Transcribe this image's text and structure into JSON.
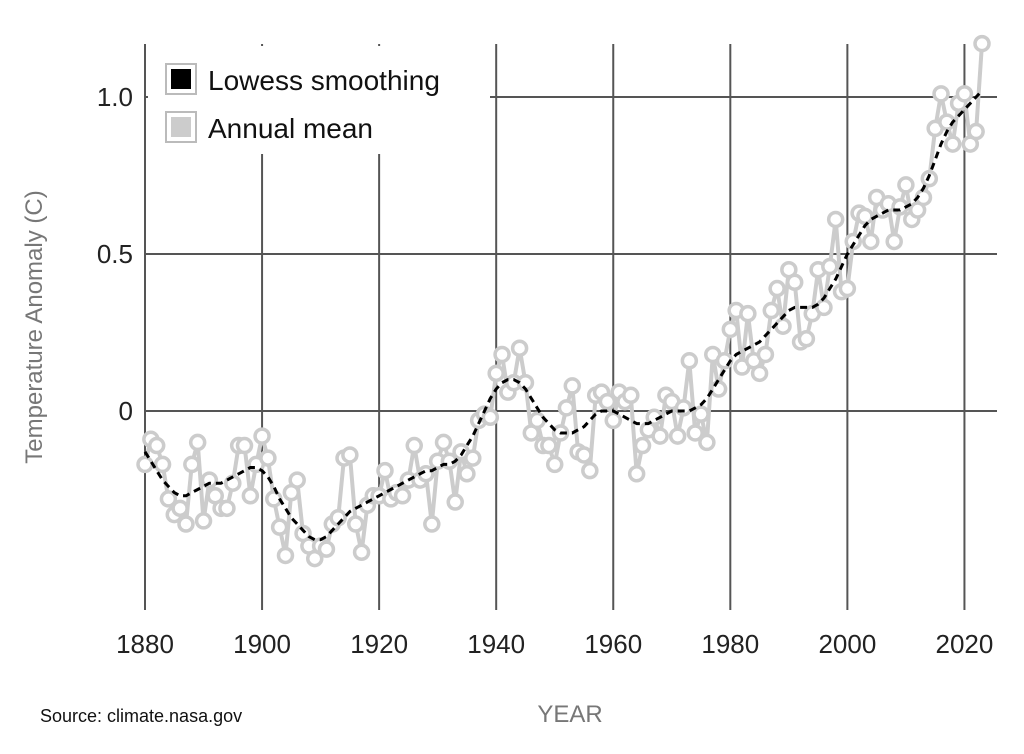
{
  "source": "Source: climate.nasa.gov",
  "chart_data": {
    "type": "line",
    "xlabel": "YEAR",
    "ylabel": "Temperature Anomaly (C)",
    "xlim": [
      1880,
      2023
    ],
    "ylim": [
      -0.6,
      1.2
    ],
    "x_ticks": [
      1880,
      1900,
      1920,
      1940,
      1960,
      1980,
      2000,
      2020
    ],
    "x_tick_labels": [
      "1880",
      "1900",
      "1920",
      "1940",
      "1960",
      "1980",
      "2000",
      "2020"
    ],
    "y_ticks": [
      0,
      0.5,
      1.0
    ],
    "y_tick_labels": [
      "0",
      "0.5",
      "1.0"
    ],
    "grid": true,
    "legend": {
      "placement": "top-left",
      "entries": [
        "Lowess smoothing",
        "Annual mean"
      ]
    },
    "colors": {
      "lowess": "#000000",
      "annual": "#cccccc",
      "grid": "#555555"
    },
    "series": [
      {
        "name": "Annual mean",
        "x": [
          1880,
          1881,
          1882,
          1883,
          1884,
          1885,
          1886,
          1887,
          1888,
          1889,
          1890,
          1891,
          1892,
          1893,
          1894,
          1895,
          1896,
          1897,
          1898,
          1899,
          1900,
          1901,
          1902,
          1903,
          1904,
          1905,
          1906,
          1907,
          1908,
          1909,
          1910,
          1911,
          1912,
          1913,
          1914,
          1915,
          1916,
          1917,
          1918,
          1919,
          1920,
          1921,
          1922,
          1923,
          1924,
          1925,
          1926,
          1927,
          1928,
          1929,
          1930,
          1931,
          1932,
          1933,
          1934,
          1935,
          1936,
          1937,
          1938,
          1939,
          1940,
          1941,
          1942,
          1943,
          1944,
          1945,
          1946,
          1947,
          1948,
          1949,
          1950,
          1951,
          1952,
          1953,
          1954,
          1955,
          1956,
          1957,
          1958,
          1959,
          1960,
          1961,
          1962,
          1963,
          1964,
          1965,
          1966,
          1967,
          1968,
          1969,
          1970,
          1971,
          1972,
          1973,
          1974,
          1975,
          1976,
          1977,
          1978,
          1979,
          1980,
          1981,
          1982,
          1983,
          1984,
          1985,
          1986,
          1987,
          1988,
          1989,
          1990,
          1991,
          1992,
          1993,
          1994,
          1995,
          1996,
          1997,
          1998,
          1999,
          2000,
          2001,
          2002,
          2003,
          2004,
          2005,
          2006,
          2007,
          2008,
          2009,
          2010,
          2011,
          2012,
          2013,
          2014,
          2015,
          2016,
          2017,
          2018,
          2019,
          2020,
          2021,
          2022,
          2023
        ],
        "values": [
          -0.17,
          -0.09,
          -0.11,
          -0.17,
          -0.28,
          -0.33,
          -0.31,
          -0.36,
          -0.17,
          -0.1,
          -0.35,
          -0.22,
          -0.27,
          -0.31,
          -0.31,
          -0.23,
          -0.11,
          -0.11,
          -0.27,
          -0.17,
          -0.08,
          -0.15,
          -0.28,
          -0.37,
          -0.46,
          -0.26,
          -0.22,
          -0.39,
          -0.43,
          -0.47,
          -0.43,
          -0.44,
          -0.36,
          -0.34,
          -0.15,
          -0.14,
          -0.36,
          -0.45,
          -0.3,
          -0.27,
          -0.27,
          -0.19,
          -0.28,
          -0.26,
          -0.27,
          -0.22,
          -0.11,
          -0.22,
          -0.2,
          -0.36,
          -0.16,
          -0.1,
          -0.16,
          -0.29,
          -0.13,
          -0.2,
          -0.15,
          -0.03,
          -0.01,
          -0.02,
          0.12,
          0.18,
          0.06,
          0.09,
          0.2,
          0.09,
          -0.07,
          -0.03,
          -0.11,
          -0.11,
          -0.17,
          -0.07,
          0.01,
          0.08,
          -0.13,
          -0.14,
          -0.19,
          0.05,
          0.06,
          0.03,
          -0.03,
          0.06,
          0.03,
          0.05,
          -0.2,
          -0.11,
          -0.06,
          -0.02,
          -0.08,
          0.05,
          0.03,
          -0.08,
          0.01,
          0.16,
          -0.07,
          -0.01,
          -0.1,
          0.18,
          0.07,
          0.16,
          0.26,
          0.32,
          0.14,
          0.31,
          0.16,
          0.12,
          0.18,
          0.32,
          0.39,
          0.27,
          0.45,
          0.41,
          0.22,
          0.23,
          0.31,
          0.45,
          0.33,
          0.46,
          0.61,
          0.38,
          0.39,
          0.54,
          0.63,
          0.62,
          0.54,
          0.68,
          0.64,
          0.66,
          0.54,
          0.65,
          0.72,
          0.61,
          0.64,
          0.68,
          0.74,
          0.9,
          1.01,
          0.92,
          0.85,
          0.98,
          1.01,
          0.85,
          0.89,
          1.17
        ]
      },
      {
        "name": "Lowess smoothing",
        "x": [
          1880,
          1881,
          1882,
          1883,
          1884,
          1885,
          1886,
          1887,
          1888,
          1889,
          1890,
          1891,
          1892,
          1893,
          1894,
          1895,
          1896,
          1897,
          1898,
          1899,
          1900,
          1901,
          1902,
          1903,
          1904,
          1905,
          1906,
          1907,
          1908,
          1909,
          1910,
          1911,
          1912,
          1913,
          1914,
          1915,
          1916,
          1917,
          1918,
          1919,
          1920,
          1921,
          1922,
          1923,
          1924,
          1925,
          1926,
          1927,
          1928,
          1929,
          1930,
          1931,
          1932,
          1933,
          1934,
          1935,
          1936,
          1937,
          1938,
          1939,
          1940,
          1941,
          1942,
          1943,
          1944,
          1945,
          1946,
          1947,
          1948,
          1949,
          1950,
          1951,
          1952,
          1953,
          1954,
          1955,
          1956,
          1957,
          1958,
          1959,
          1960,
          1961,
          1962,
          1963,
          1964,
          1965,
          1966,
          1967,
          1968,
          1969,
          1970,
          1971,
          1972,
          1973,
          1974,
          1975,
          1976,
          1977,
          1978,
          1979,
          1980,
          1981,
          1982,
          1983,
          1984,
          1985,
          1986,
          1987,
          1988,
          1989,
          1990,
          1991,
          1992,
          1993,
          1994,
          1995,
          1996,
          1997,
          1998,
          1999,
          2000,
          2001,
          2002,
          2003,
          2004,
          2005,
          2006,
          2007,
          2008,
          2009,
          2010,
          2011,
          2012,
          2013,
          2014,
          2015,
          2016,
          2017,
          2018,
          2019,
          2020,
          2021,
          2022,
          2023
        ],
        "values": [
          -0.13,
          -0.16,
          -0.19,
          -0.22,
          -0.24,
          -0.26,
          -0.27,
          -0.27,
          -0.26,
          -0.25,
          -0.24,
          -0.23,
          -0.23,
          -0.23,
          -0.22,
          -0.21,
          -0.2,
          -0.19,
          -0.18,
          -0.18,
          -0.19,
          -0.21,
          -0.24,
          -0.28,
          -0.31,
          -0.34,
          -0.36,
          -0.38,
          -0.4,
          -0.41,
          -0.41,
          -0.4,
          -0.38,
          -0.36,
          -0.34,
          -0.32,
          -0.31,
          -0.3,
          -0.29,
          -0.28,
          -0.27,
          -0.26,
          -0.25,
          -0.24,
          -0.23,
          -0.22,
          -0.21,
          -0.2,
          -0.19,
          -0.19,
          -0.18,
          -0.17,
          -0.17,
          -0.16,
          -0.14,
          -0.11,
          -0.08,
          -0.04,
          0.0,
          0.04,
          0.07,
          0.09,
          0.1,
          0.1,
          0.09,
          0.07,
          0.04,
          0.01,
          -0.02,
          -0.04,
          -0.06,
          -0.07,
          -0.07,
          -0.07,
          -0.06,
          -0.05,
          -0.03,
          -0.01,
          0.0,
          0.0,
          0.0,
          -0.01,
          -0.02,
          -0.03,
          -0.04,
          -0.04,
          -0.04,
          -0.03,
          -0.02,
          -0.01,
          0.0,
          0.0,
          0.0,
          0.0,
          0.01,
          0.02,
          0.04,
          0.07,
          0.1,
          0.13,
          0.16,
          0.18,
          0.19,
          0.2,
          0.21,
          0.22,
          0.24,
          0.26,
          0.28,
          0.3,
          0.32,
          0.33,
          0.33,
          0.33,
          0.33,
          0.34,
          0.36,
          0.39,
          0.42,
          0.46,
          0.5,
          0.53,
          0.56,
          0.59,
          0.61,
          0.62,
          0.63,
          0.64,
          0.64,
          0.64,
          0.65,
          0.66,
          0.68,
          0.71,
          0.75,
          0.8,
          0.85,
          0.89,
          0.92,
          0.94,
          0.96,
          0.98,
          1.0,
          1.02
        ]
      }
    ]
  }
}
